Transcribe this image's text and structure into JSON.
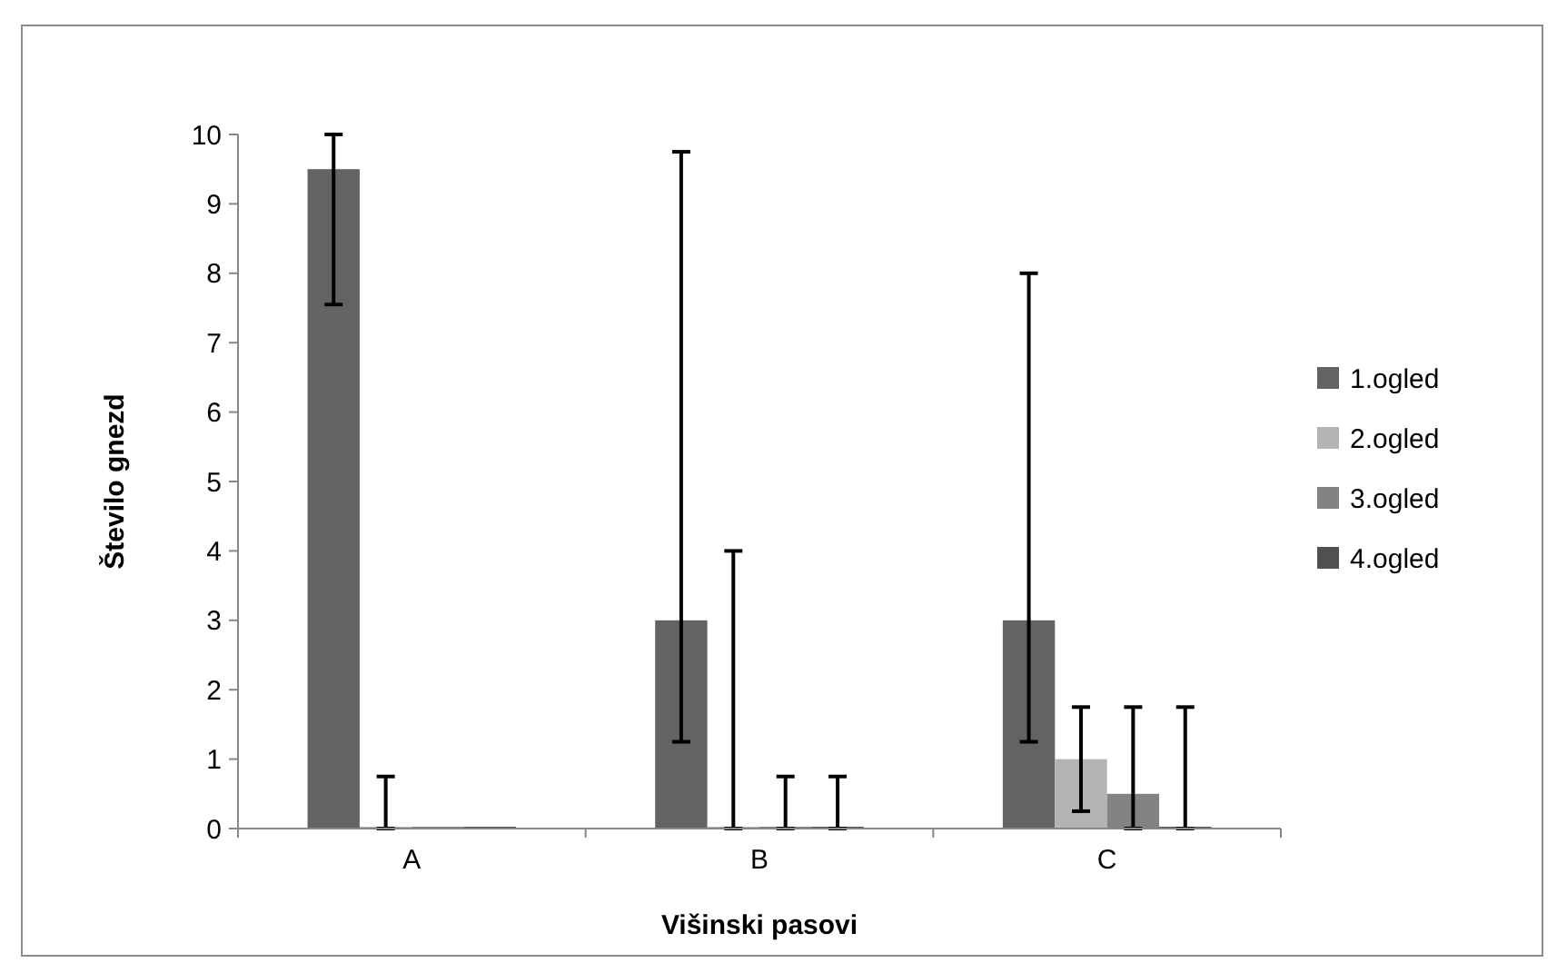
{
  "chart_data": {
    "type": "bar",
    "xlabel": "Višinski pasovi",
    "ylabel": "Število gnezd",
    "categories": [
      "A",
      "B",
      "C"
    ],
    "series": [
      {
        "name": "1.ogled",
        "color": "#636363",
        "values": [
          9.5,
          3,
          3
        ],
        "errors": [
          [
            7.55,
            10
          ],
          [
            1.25,
            9.75
          ],
          [
            1.25,
            8
          ]
        ]
      },
      {
        "name": "2.ogled",
        "color": "#b3b3b3",
        "values": [
          0,
          0,
          1
        ],
        "errors": [
          [
            0,
            0.75
          ],
          [
            0,
            4
          ],
          [
            0.25,
            1.75
          ]
        ]
      },
      {
        "name": "3.ogled",
        "color": "#838383",
        "values": [
          0,
          0,
          0.5
        ],
        "errors": [
          null,
          [
            0,
            0.75
          ],
          [
            0,
            1.75
          ]
        ]
      },
      {
        "name": "4.ogled",
        "color": "#505050",
        "values": [
          0,
          0,
          0
        ],
        "errors": [
          null,
          [
            0,
            0.75
          ],
          [
            0,
            1.75
          ]
        ]
      }
    ],
    "ylim": [
      0,
      10
    ],
    "yticks": [
      0,
      1,
      2,
      3,
      4,
      5,
      6,
      7,
      8,
      9,
      10
    ],
    "legend": "right"
  }
}
